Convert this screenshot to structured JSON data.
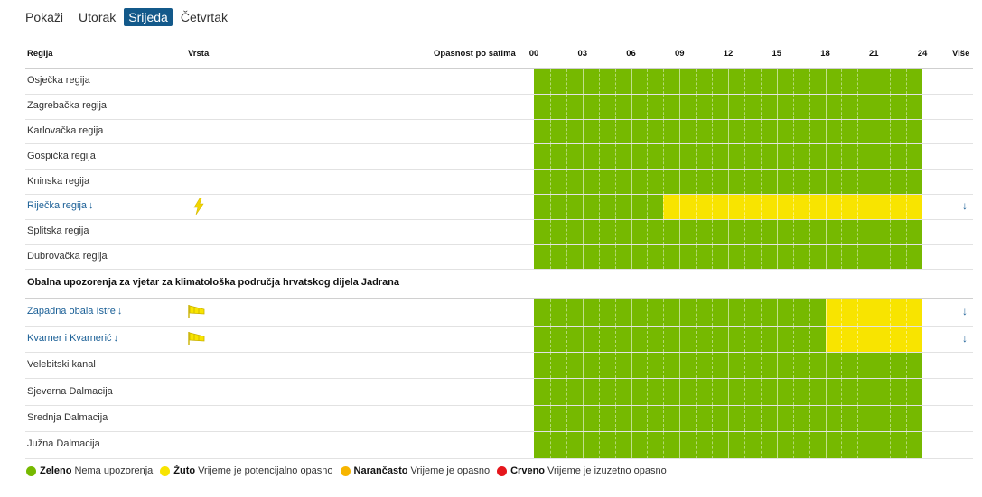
{
  "colors": {
    "green": "#76b900",
    "yellow": "#f8e400",
    "orange": "#f7b500",
    "red": "#e5161c",
    "accent": "#13598a",
    "link": "#1a5f96"
  },
  "tabs": {
    "lead": "Pokaži",
    "items": [
      "Utorak",
      "Srijeda",
      "Četvrtak"
    ],
    "active_index": 1
  },
  "header": {
    "regija": "Regija",
    "vrsta": "Vrsta",
    "opasnost": "Opasnost po satima",
    "vise": "Više",
    "hours": [
      "00",
      "03",
      "06",
      "09",
      "12",
      "15",
      "18",
      "21",
      "24"
    ]
  },
  "regions": [
    {
      "name": "Osječka regija",
      "link": false,
      "icon": "",
      "timeline": [
        [
          "green",
          24
        ]
      ]
    },
    {
      "name": "Zagrebačka regija",
      "link": false,
      "icon": "",
      "timeline": [
        [
          "green",
          24
        ]
      ]
    },
    {
      "name": "Karlovačka regija",
      "link": false,
      "icon": "",
      "timeline": [
        [
          "green",
          24
        ]
      ]
    },
    {
      "name": "Gospićka regija",
      "link": false,
      "icon": "",
      "timeline": [
        [
          "green",
          24
        ]
      ]
    },
    {
      "name": "Kninska regija",
      "link": false,
      "icon": "",
      "timeline": [
        [
          "green",
          24
        ]
      ]
    },
    {
      "name": "Riječka regija",
      "link": true,
      "icon": "lightning-icon",
      "timeline": [
        [
          "green",
          8
        ],
        [
          "yellow",
          16
        ]
      ]
    },
    {
      "name": "Splitska regija",
      "link": false,
      "icon": "",
      "timeline": [
        [
          "green",
          24
        ]
      ]
    },
    {
      "name": "Dubrovačka regija",
      "link": false,
      "icon": "",
      "timeline": [
        [
          "green",
          24
        ]
      ]
    }
  ],
  "section_title": "Obalna upozorenja za vjetar za klimatološka područja hrvatskog dijela Jadrana",
  "coastal": [
    {
      "name": "Zapadna obala Istre",
      "link": true,
      "icon": "windsock-icon",
      "timeline": [
        [
          "green",
          18
        ],
        [
          "yellow",
          6
        ]
      ]
    },
    {
      "name": "Kvarner i Kvarnerić",
      "link": true,
      "icon": "windsock-icon",
      "timeline": [
        [
          "green",
          18
        ],
        [
          "yellow",
          6
        ]
      ]
    },
    {
      "name": "Velebitski kanal",
      "link": false,
      "icon": "",
      "timeline": [
        [
          "green",
          24
        ]
      ]
    },
    {
      "name": "Sjeverna Dalmacija",
      "link": false,
      "icon": "",
      "timeline": [
        [
          "green",
          24
        ]
      ]
    },
    {
      "name": "Srednja Dalmacija",
      "link": false,
      "icon": "",
      "timeline": [
        [
          "green",
          24
        ]
      ]
    },
    {
      "name": "Južna Dalmacija",
      "link": false,
      "icon": "",
      "timeline": [
        [
          "green",
          24
        ]
      ]
    }
  ],
  "link_arrow": "↓",
  "legend": [
    {
      "color": "green",
      "name": "Zeleno",
      "text": "Nema upozorenja"
    },
    {
      "color": "yellow",
      "name": "Žuto",
      "text": "Vrijeme je potencijalno opasno"
    },
    {
      "color": "orange",
      "name": "Narančasto",
      "text": "Vrijeme je opasno"
    },
    {
      "color": "red",
      "name": "Crveno",
      "text": "Vrijeme je izuzetno opasno"
    }
  ]
}
